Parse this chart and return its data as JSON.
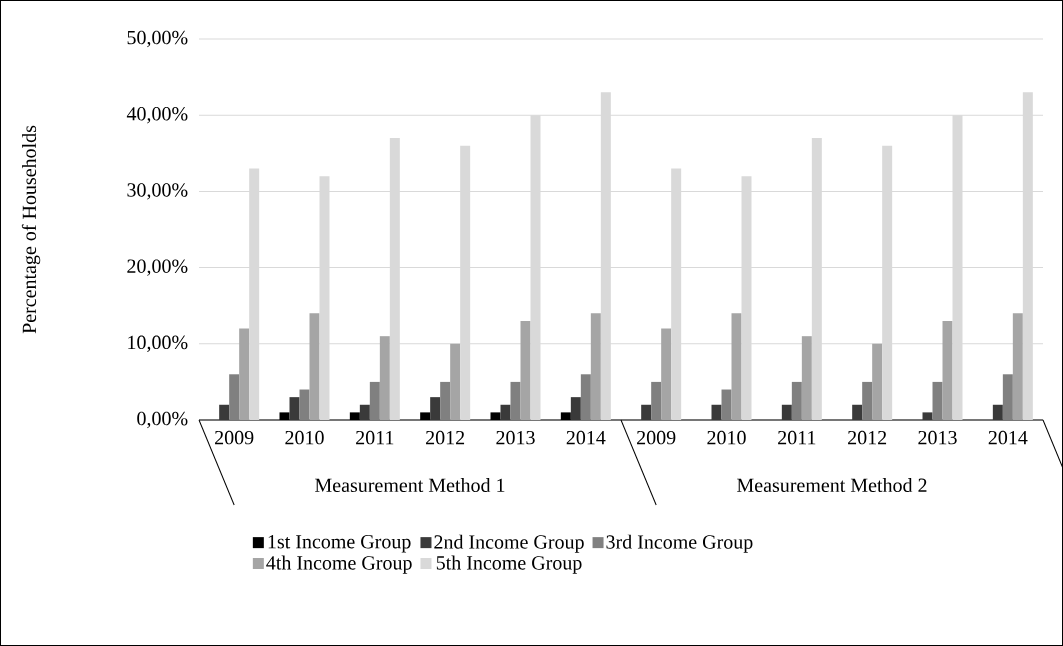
{
  "chart_data": {
    "type": "bar",
    "ylabel": "Percentage of Households",
    "categories": [
      "2009",
      "2010",
      "2011",
      "2012",
      "2013",
      "2014",
      "2009",
      "2010",
      "2011",
      "2012",
      "2013",
      "2014"
    ],
    "annotations": [
      "Measurement Method 1",
      "Measurement Method 2"
    ],
    "series": [
      {
        "name": "1st Income Group",
        "color": "#000000",
        "values": [
          0,
          1,
          1,
          1,
          1,
          1,
          0,
          0,
          0,
          0,
          0,
          0
        ]
      },
      {
        "name": "2nd Income Group",
        "color": "#3a3a3a",
        "values": [
          2,
          3,
          2,
          3,
          2,
          3,
          2,
          2,
          2,
          2,
          1,
          2
        ]
      },
      {
        "name": "3rd Income Group",
        "color": "#808080",
        "values": [
          6,
          4,
          5,
          5,
          5,
          6,
          5,
          4,
          5,
          5,
          5,
          6
        ]
      },
      {
        "name": "4th Income Group",
        "color": "#a5a5a5",
        "values": [
          12,
          14,
          11,
          10,
          13,
          14,
          12,
          14,
          11,
          10,
          13,
          14
        ]
      },
      {
        "name": "5th Income Group",
        "color": "#d9d9d9",
        "values": [
          33,
          32,
          37,
          36,
          40,
          43,
          33,
          32,
          37,
          36,
          40,
          43
        ]
      }
    ],
    "ylim": [
      0,
      50
    ],
    "yticks": [
      {
        "value": 0,
        "label": "0,00%"
      },
      {
        "value": 10,
        "label": "10,00%"
      },
      {
        "value": 20,
        "label": "20,00%"
      },
      {
        "value": 30,
        "label": "30,00%"
      },
      {
        "value": 40,
        "label": "40,00%"
      },
      {
        "value": 50,
        "label": "50,00%"
      }
    ],
    "grid": "y",
    "legend": "bottom"
  }
}
